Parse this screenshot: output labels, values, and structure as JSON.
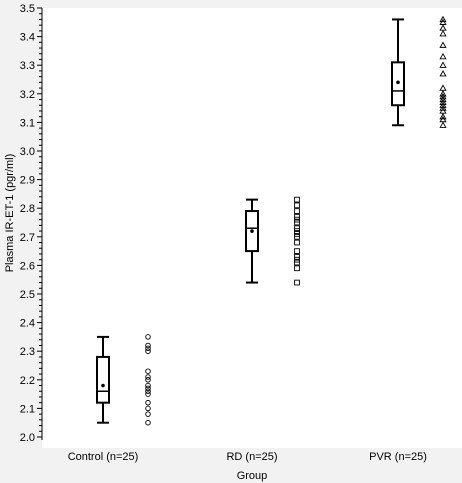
{
  "chart_data": {
    "type": "box",
    "title": "",
    "xlabel": "Group",
    "ylabel": "Plasma IR-ET-1 (pgr/ml)",
    "ylim": [
      2.0,
      3.5
    ],
    "y_ticks": [
      "2.0",
      "2.1",
      "2.2",
      "2.3",
      "2.4",
      "2.5",
      "2.6",
      "2.7",
      "2.8",
      "2.9",
      "3.0",
      "3.1",
      "3.2",
      "3.3",
      "3.4",
      "3.5"
    ],
    "y_tick_values": [
      2.0,
      2.1,
      2.2,
      2.3,
      2.4,
      2.5,
      2.6,
      2.7,
      2.8,
      2.9,
      3.0,
      3.1,
      3.2,
      3.3,
      3.4,
      3.5
    ],
    "minor_ticks_per_major": 5,
    "grid": false,
    "categories": [
      "Control (n=25)",
      "RD (n=25)",
      "PVR (n=25)"
    ],
    "boxes": [
      {
        "category": "Control (n=25)",
        "min": 2.05,
        "q1": 2.12,
        "median": 2.16,
        "q3": 2.28,
        "max": 2.35,
        "mean": 2.18,
        "marker": "circle",
        "points": [
          2.05,
          2.08,
          2.1,
          2.12,
          2.15,
          2.16,
          2.17,
          2.18,
          2.2,
          2.21,
          2.23,
          2.3,
          2.31,
          2.32,
          2.35
        ]
      },
      {
        "category": "RD (n=25)",
        "min": 2.54,
        "q1": 2.65,
        "median": 2.73,
        "q3": 2.79,
        "max": 2.83,
        "mean": 2.72,
        "marker": "square",
        "points": [
          2.54,
          2.59,
          2.61,
          2.62,
          2.63,
          2.65,
          2.68,
          2.7,
          2.71,
          2.72,
          2.73,
          2.75,
          2.76,
          2.77,
          2.79,
          2.81,
          2.83
        ]
      },
      {
        "category": "PVR (n=25)",
        "min": 3.09,
        "q1": 3.16,
        "median": 3.21,
        "q3": 3.31,
        "max": 3.46,
        "mean": 3.24,
        "marker": "triangle",
        "points": [
          3.09,
          3.11,
          3.12,
          3.14,
          3.15,
          3.16,
          3.17,
          3.18,
          3.19,
          3.2,
          3.22,
          3.27,
          3.3,
          3.33,
          3.37,
          3.41,
          3.43,
          3.45,
          3.46
        ]
      }
    ],
    "colors": {
      "background": "#f2f2f2",
      "plot": "#ffffff",
      "ink": "#000000"
    }
  }
}
